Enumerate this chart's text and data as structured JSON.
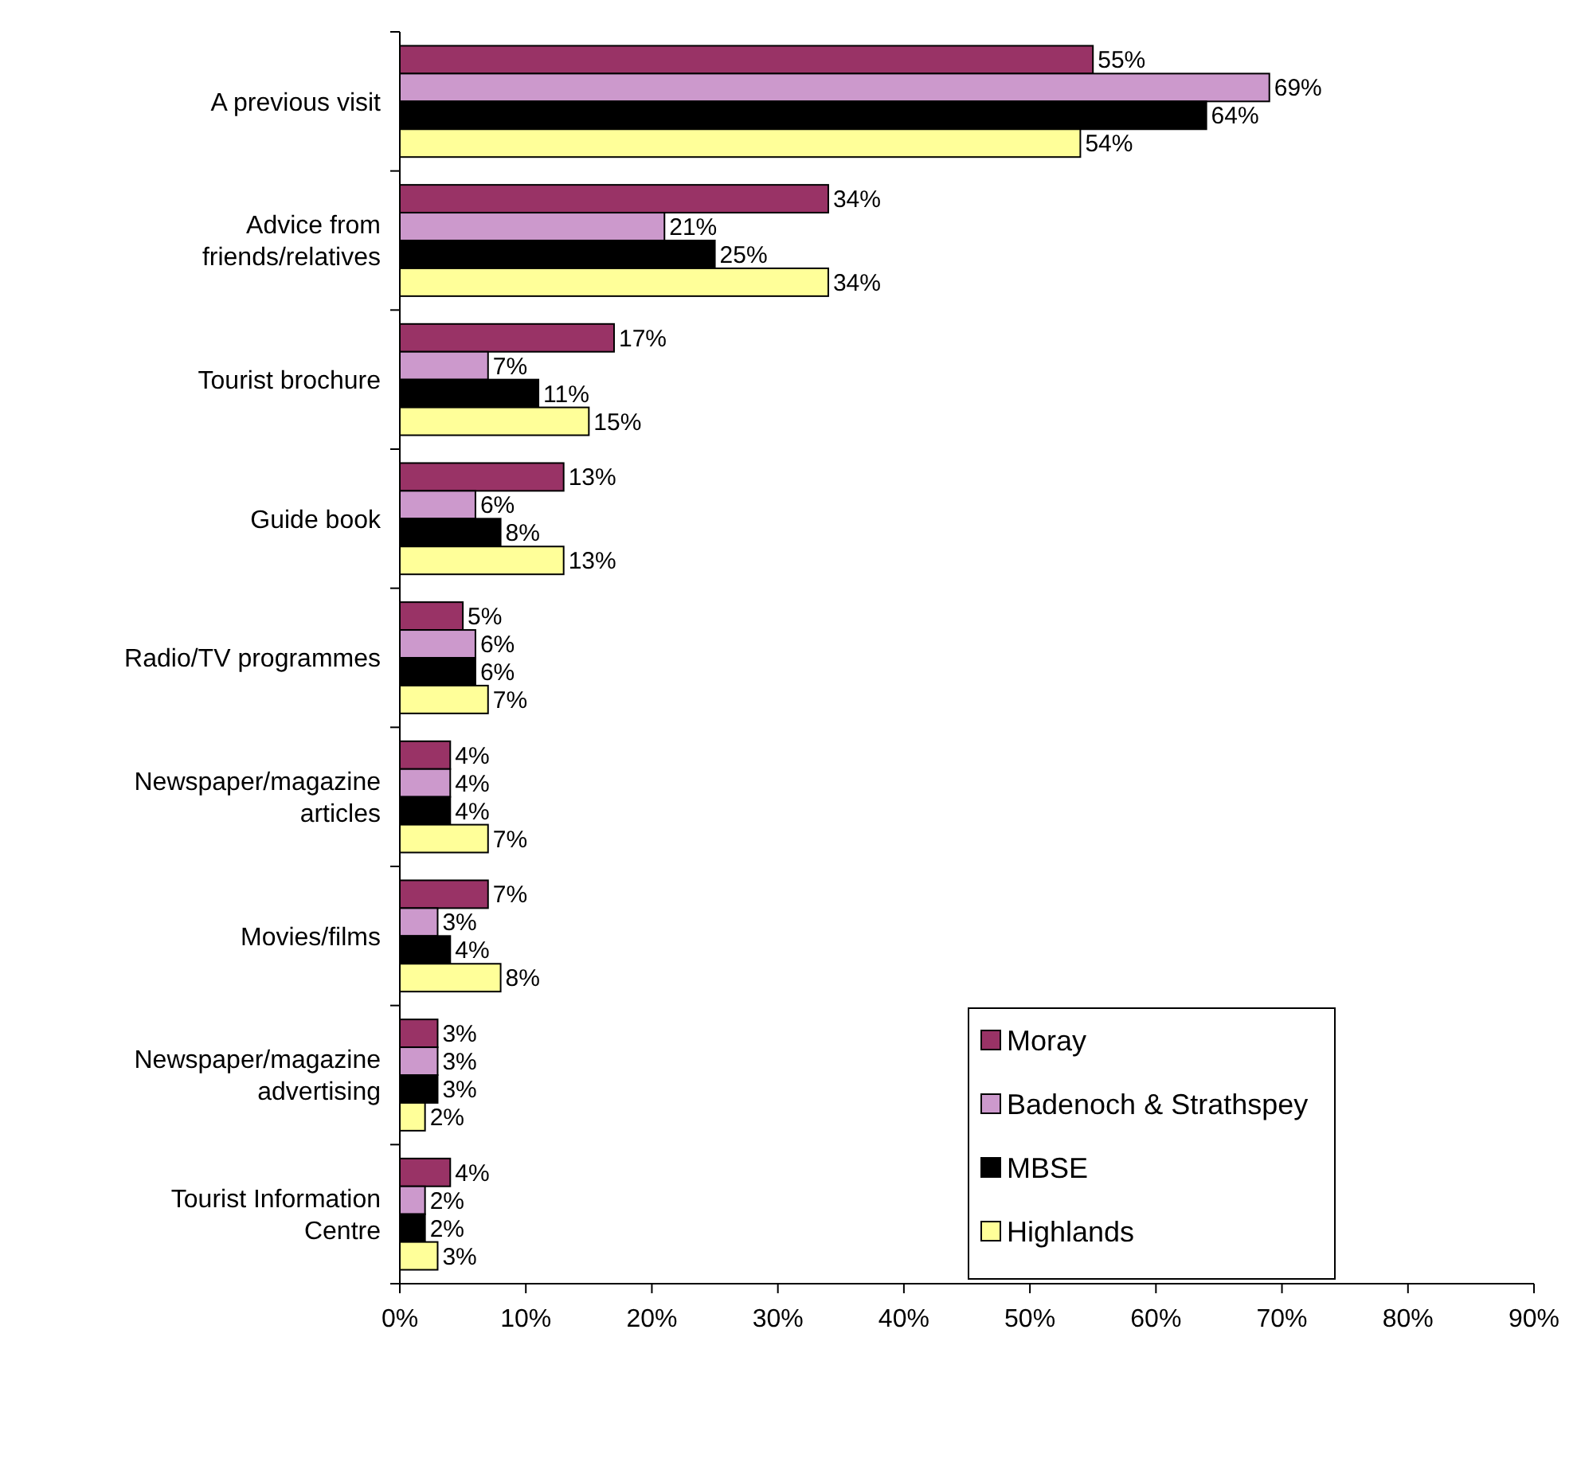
{
  "chart_data": {
    "type": "bar",
    "orientation": "horizontal",
    "categories": [
      "A previous visit",
      "Advice from\nfriends/relatives",
      "Tourist brochure",
      "Guide book",
      "Radio/TV programmes",
      "Newspaper/magazine\narticles",
      "Movies/films",
      "Newspaper/magazine\nadvertising",
      "Tourist Information\nCentre"
    ],
    "series": [
      {
        "name": "Moray",
        "color": "#993366",
        "values": [
          55,
          34,
          17,
          13,
          5,
          4,
          7,
          3,
          4
        ],
        "value_labels": [
          "55%",
          "34%",
          "17%",
          "13%",
          "5%",
          "4%",
          "7%",
          "3%",
          "4%"
        ]
      },
      {
        "name": "Badenoch & Strathspey",
        "color": "#cc99cc",
        "values": [
          69,
          21,
          7,
          6,
          6,
          4,
          3,
          3,
          2
        ],
        "value_labels": [
          "69%",
          "21%",
          "7%",
          "6%",
          "6%",
          "4%",
          "3%",
          "3%",
          "2%"
        ]
      },
      {
        "name": "MBSE",
        "color": "#000000",
        "values": [
          64,
          25,
          11,
          8,
          6,
          4,
          4,
          3,
          2
        ],
        "value_labels": [
          "64%",
          "25%",
          "11%",
          "8%",
          "6%",
          "4%",
          "4%",
          "3%",
          "2%"
        ]
      },
      {
        "name": "Highlands",
        "color": "#ffff99",
        "values": [
          54,
          34,
          15,
          13,
          7,
          7,
          8,
          2,
          3
        ],
        "value_labels": [
          "54%",
          "34%",
          "15%",
          "13%",
          "7%",
          "7%",
          "8%",
          "2%",
          "3%"
        ]
      }
    ],
    "xlim": [
      0,
      90
    ],
    "xticks": [
      {
        "value": 0,
        "label": "0%"
      },
      {
        "value": 10,
        "label": "10%"
      },
      {
        "value": 20,
        "label": "20%"
      },
      {
        "value": 30,
        "label": "30%"
      },
      {
        "value": 40,
        "label": "40%"
      },
      {
        "value": 50,
        "label": "50%"
      },
      {
        "value": 60,
        "label": "60%"
      },
      {
        "value": 70,
        "label": "70%"
      },
      {
        "value": 80,
        "label": "80%"
      },
      {
        "value": 90,
        "label": "90%"
      }
    ],
    "legend": "bottom right"
  }
}
